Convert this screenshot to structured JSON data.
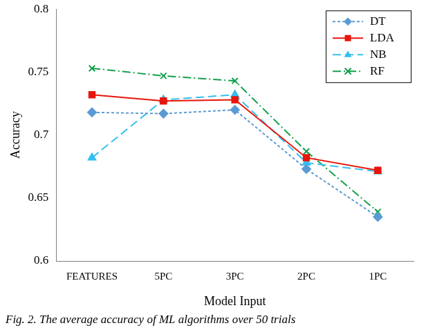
{
  "chart_data": {
    "type": "line",
    "title": "Fig. 2. The average accuracy of ML algorithms over 50 trials",
    "x_label": "Model Input",
    "y_label": "Accuracy",
    "categories": [
      "FEATURES",
      "5PC",
      "3PC",
      "2PC",
      "1PC"
    ],
    "series": [
      {
        "name": "DT",
        "color": "#5b9bd5",
        "marker": "diamond",
        "line_style": "dashed",
        "values": [
          0.718,
          0.717,
          0.72,
          0.673,
          0.635
        ]
      },
      {
        "name": "LDA",
        "color": "#e8150c",
        "marker": "square",
        "line_style": "solid",
        "values": [
          0.732,
          0.727,
          0.728,
          0.682,
          0.672
        ]
      },
      {
        "name": "NB",
        "color": "#33bfef",
        "marker": "triangle",
        "line_style": "longdash",
        "values": [
          0.682,
          0.728,
          0.732,
          0.678,
          0.671
        ]
      },
      {
        "name": "RF",
        "color": "#12a04c",
        "marker": "x",
        "line_style": "dashdot",
        "values": [
          0.753,
          0.747,
          0.743,
          0.687,
          0.639
        ]
      }
    ],
    "ylim": [
      0.6,
      0.8
    ],
    "yticks": [
      0.6,
      0.65,
      0.7,
      0.75,
      0.8
    ],
    "grid": false,
    "legend": "upper right"
  }
}
